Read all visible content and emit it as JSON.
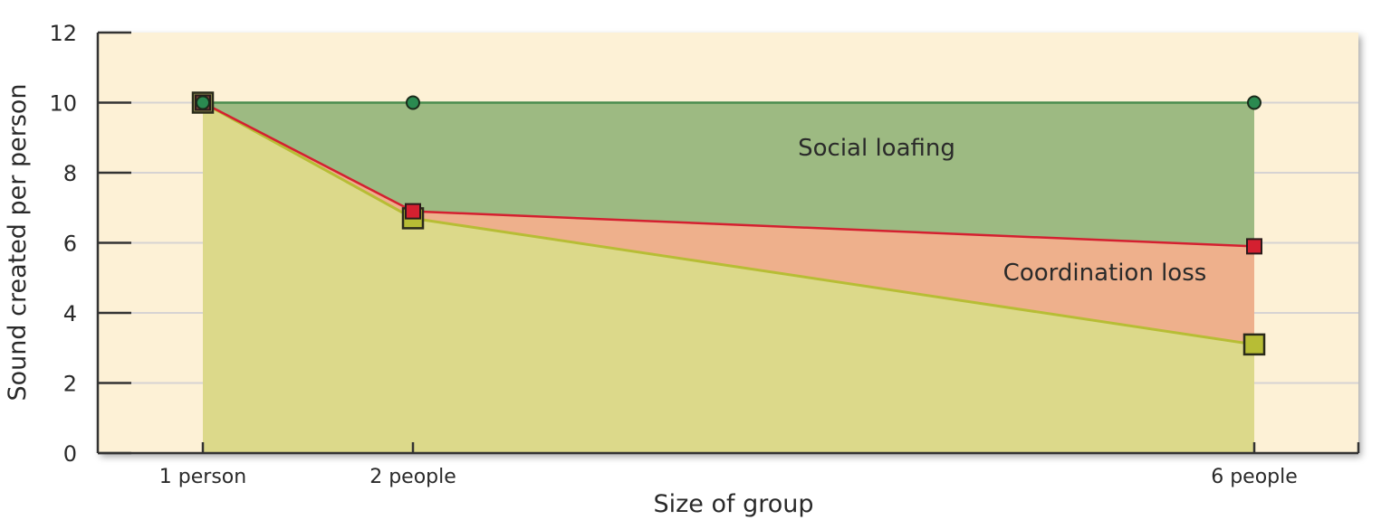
{
  "chart_data": {
    "type": "area",
    "xlabel": "Size of group",
    "ylabel": "Sound created per person",
    "categories": [
      "1 person",
      "2 people",
      "6 people"
    ],
    "ylim": [
      0,
      12
    ],
    "yticks": [
      0,
      2,
      4,
      6,
      8,
      10,
      12
    ],
    "grid": true,
    "series": [
      {
        "key": "potential",
        "marker": "circle",
        "values": [
          10,
          10,
          10
        ]
      },
      {
        "key": "expected",
        "marker": "square",
        "values": [
          10,
          6.9,
          5.9
        ]
      },
      {
        "key": "actual",
        "marker": "square",
        "values": [
          10,
          6.7,
          3.1
        ]
      }
    ],
    "regions": [
      {
        "label": "Social loafing",
        "between": [
          "potential",
          "expected"
        ]
      },
      {
        "label": "Coordination loss",
        "between": [
          "expected",
          "actual"
        ]
      }
    ],
    "colors": {
      "background": "#fdf1d6",
      "social_loafing_fill": "#9dba82",
      "coordination_loss_fill": "#eeb08c",
      "actual_fill": "#dcd98a",
      "potential_line": "#4a8c4e",
      "potential_marker": "#2a8a50",
      "expected": "#d42030",
      "actual": "#b7bd35",
      "grid": "#d6d3d3"
    }
  }
}
